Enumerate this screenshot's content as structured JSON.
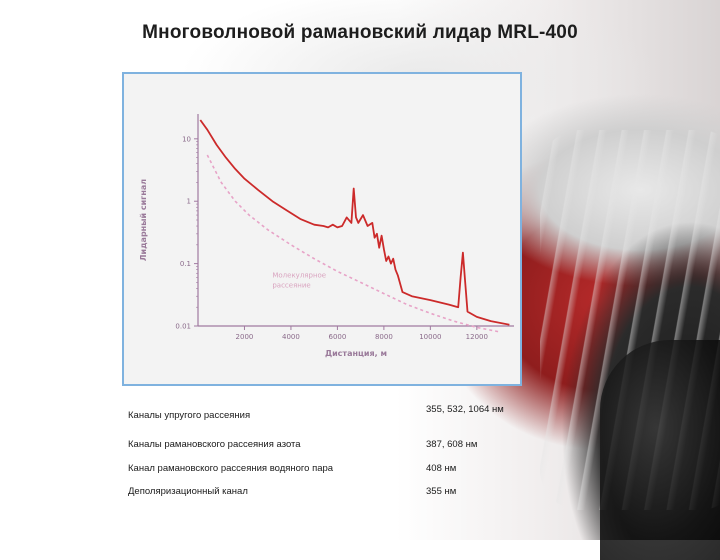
{
  "slide": {
    "title": "Многоволновой рамановский лидар MRL-400"
  },
  "colors": {
    "raman_curve": "#cc2a2a",
    "molecular_curve": "#e7a3c7",
    "frame_border": "#7fb2df",
    "axis": "#a07aa0"
  },
  "chart_data": {
    "type": "line",
    "title": "",
    "xlabel": "Дистанция, м",
    "ylabel": "Лидарный сигнал",
    "xlim": [
      0,
      13600
    ],
    "ylim": [
      0.01,
      25
    ],
    "yscale": "log",
    "x_ticks": [
      "2000",
      "4000",
      "6000",
      "8000",
      "10000",
      "12000"
    ],
    "x_tick_values": [
      2000,
      4000,
      6000,
      8000,
      10000,
      12000
    ],
    "y_ticks": [
      "0.01",
      "0.1",
      "1",
      "10"
    ],
    "y_tick_values": [
      0.01,
      0.1,
      1,
      10
    ],
    "grid": false,
    "annotations": [
      {
        "text_lines": [
          "Молекулярное",
          "рассеяние"
        ],
        "anchor_x": 2000,
        "anchor_y": 0.06
      }
    ],
    "series": [
      {
        "style": "solid",
        "points": [
          [
            100,
            20
          ],
          [
            400,
            14
          ],
          [
            800,
            8
          ],
          [
            1200,
            5
          ],
          [
            1600,
            3.3
          ],
          [
            2000,
            2.3
          ],
          [
            2600,
            1.5
          ],
          [
            3200,
            1.0
          ],
          [
            3800,
            0.72
          ],
          [
            4400,
            0.52
          ],
          [
            5000,
            0.42
          ],
          [
            5400,
            0.4
          ],
          [
            5600,
            0.38
          ],
          [
            5800,
            0.42
          ],
          [
            6000,
            0.38
          ],
          [
            6200,
            0.4
          ],
          [
            6400,
            0.55
          ],
          [
            6600,
            0.45
          ],
          [
            6700,
            1.6
          ],
          [
            6800,
            0.55
          ],
          [
            6900,
            0.45
          ],
          [
            7100,
            0.6
          ],
          [
            7300,
            0.4
          ],
          [
            7500,
            0.45
          ],
          [
            7600,
            0.26
          ],
          [
            7700,
            0.3
          ],
          [
            7800,
            0.18
          ],
          [
            7900,
            0.28
          ],
          [
            8000,
            0.17
          ],
          [
            8100,
            0.11
          ],
          [
            8200,
            0.13
          ],
          [
            8300,
            0.1
          ],
          [
            8400,
            0.12
          ],
          [
            8500,
            0.08
          ],
          [
            8600,
            0.065
          ],
          [
            8800,
            0.035
          ],
          [
            9200,
            0.03
          ],
          [
            10000,
            0.026
          ],
          [
            10800,
            0.022
          ],
          [
            11200,
            0.02
          ],
          [
            11300,
            0.06
          ],
          [
            11400,
            0.15
          ],
          [
            11500,
            0.05
          ],
          [
            11600,
            0.017
          ],
          [
            12000,
            0.014
          ],
          [
            12600,
            0.012
          ],
          [
            13400,
            0.0105
          ]
        ]
      },
      {
        "style": "dashed",
        "points": [
          [
            400,
            5.5
          ],
          [
            1000,
            2.0
          ],
          [
            1600,
            1.0
          ],
          [
            2200,
            0.6
          ],
          [
            3000,
            0.35
          ],
          [
            4000,
            0.2
          ],
          [
            5000,
            0.12
          ],
          [
            6000,
            0.075
          ],
          [
            7000,
            0.05
          ],
          [
            8000,
            0.033
          ],
          [
            9000,
            0.022
          ],
          [
            10000,
            0.016
          ],
          [
            11000,
            0.012
          ],
          [
            12000,
            0.0095
          ],
          [
            13000,
            0.008
          ]
        ]
      }
    ]
  },
  "channels": [
    {
      "label": "Каналы упругого рассеяния",
      "value": "355, 532, 1064 нм"
    },
    {
      "label": "Каналы рамановского рассеяния азота",
      "value": "387, 608 нм"
    },
    {
      "label": "Канал рамановского рассеяния водяного пара",
      "value": "408 нм"
    },
    {
      "label": "Деполяризационный канал",
      "value": "355 нм"
    }
  ]
}
